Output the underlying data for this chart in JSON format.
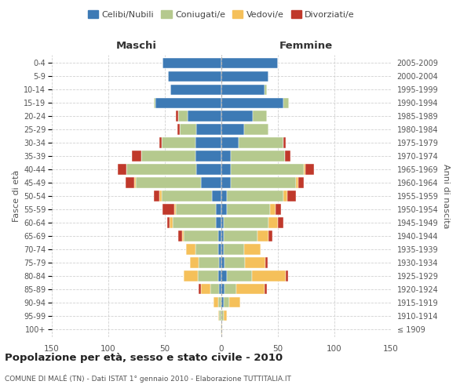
{
  "age_groups": [
    "100+",
    "95-99",
    "90-94",
    "85-89",
    "80-84",
    "75-79",
    "70-74",
    "65-69",
    "60-64",
    "55-59",
    "50-54",
    "45-49",
    "40-44",
    "35-39",
    "30-34",
    "25-29",
    "20-24",
    "15-19",
    "10-14",
    "5-9",
    "0-4"
  ],
  "birth_years": [
    "≤ 1909",
    "1910-1914",
    "1915-1919",
    "1920-1924",
    "1925-1929",
    "1930-1934",
    "1935-1939",
    "1940-1944",
    "1945-1949",
    "1950-1954",
    "1955-1959",
    "1960-1964",
    "1965-1969",
    "1970-1974",
    "1975-1979",
    "1980-1984",
    "1985-1989",
    "1990-1994",
    "1995-1999",
    "2000-2004",
    "2005-2009"
  ],
  "male": {
    "celibi": [
      0,
      0,
      0,
      2,
      3,
      2,
      3,
      3,
      5,
      5,
      8,
      18,
      22,
      23,
      23,
      22,
      30,
      58,
      45,
      47,
      52
    ],
    "coniugati": [
      1,
      2,
      3,
      8,
      18,
      18,
      20,
      30,
      38,
      35,
      45,
      58,
      62,
      48,
      30,
      15,
      8,
      2,
      0,
      0,
      0
    ],
    "vedovi": [
      0,
      1,
      4,
      8,
      12,
      8,
      8,
      2,
      3,
      2,
      2,
      1,
      0,
      0,
      0,
      0,
      0,
      0,
      0,
      0,
      0
    ],
    "divorziati": [
      0,
      0,
      0,
      2,
      0,
      0,
      0,
      3,
      2,
      10,
      5,
      8,
      8,
      8,
      2,
      2,
      2,
      0,
      0,
      0,
      0
    ]
  },
  "female": {
    "nubili": [
      0,
      0,
      2,
      3,
      5,
      3,
      2,
      2,
      2,
      5,
      5,
      8,
      8,
      8,
      15,
      20,
      28,
      55,
      38,
      42,
      50
    ],
    "coniugate": [
      0,
      2,
      5,
      10,
      22,
      18,
      18,
      30,
      40,
      38,
      50,
      58,
      65,
      48,
      40,
      22,
      12,
      5,
      2,
      0,
      0
    ],
    "vedove": [
      1,
      3,
      10,
      25,
      30,
      18,
      15,
      10,
      8,
      5,
      3,
      2,
      1,
      0,
      0,
      0,
      0,
      0,
      0,
      0,
      0
    ],
    "divorziate": [
      0,
      0,
      0,
      2,
      2,
      2,
      0,
      3,
      5,
      5,
      8,
      5,
      8,
      5,
      2,
      0,
      0,
      0,
      0,
      0,
      0
    ]
  },
  "colors": {
    "celibi": "#3d7ab5",
    "coniugati": "#b5c98e",
    "vedovi": "#f5c05a",
    "divorziati": "#c0392b"
  },
  "title": "Popolazione per età, sesso e stato civile - 2010",
  "subtitle": "COMUNE DI MALÉ (TN) - Dati ISTAT 1° gennaio 2010 - Elaborazione TUTTITALIA.IT",
  "xlabel_left": "Maschi",
  "xlabel_right": "Femmine",
  "ylabel_left": "Fasce di età",
  "ylabel_right": "Anni di nascita",
  "xlim": 150,
  "bg_color": "#ffffff",
  "grid_color": "#cccccc"
}
